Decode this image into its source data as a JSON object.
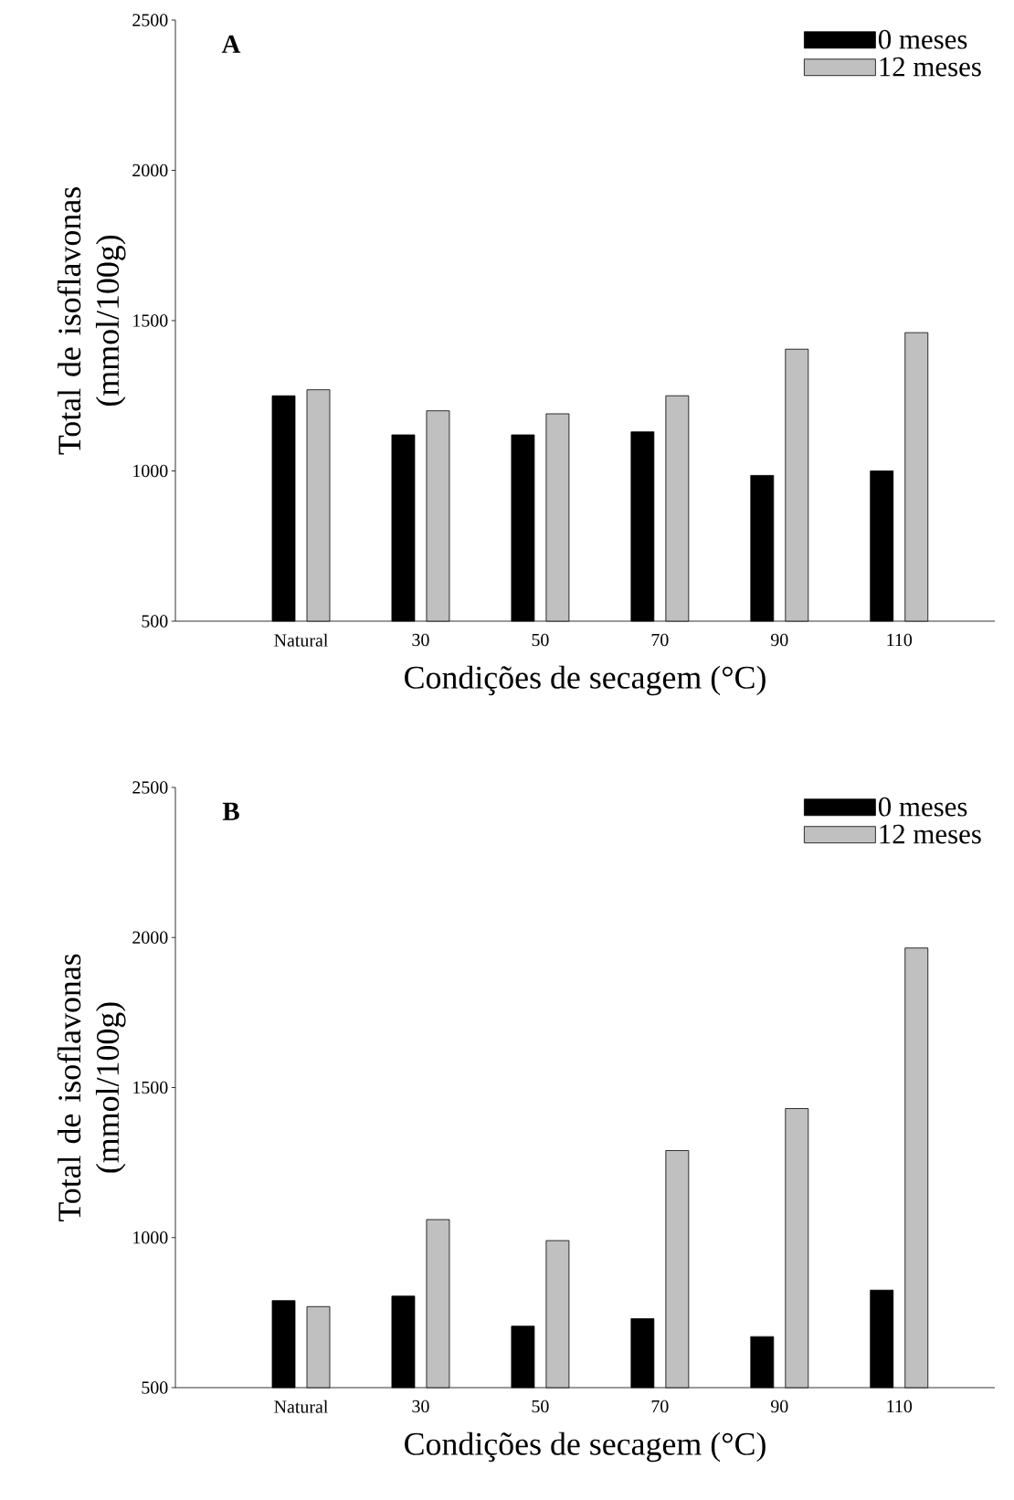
{
  "chart_data": [
    {
      "type": "bar",
      "annotations": [
        "A"
      ],
      "xlabel": "Condições de secagem (°C)",
      "ylabel": "Total de isoflavonas (mmol/100g)",
      "categories": [
        "Natural",
        "30",
        "50",
        "70",
        "90",
        "110"
      ],
      "series": [
        {
          "name": "0 meses",
          "color": "#000000",
          "values": [
            1250,
            1120,
            1120,
            1130,
            985,
            1000
          ]
        },
        {
          "name": "12 meses",
          "color": "#c0c0c0",
          "values": [
            1270,
            1200,
            1190,
            1250,
            1405,
            1460
          ]
        }
      ],
      "ylim": [
        500,
        2500
      ],
      "yticks": [
        500,
        1000,
        1500,
        2000,
        2500
      ],
      "legend": "top right"
    },
    {
      "type": "bar",
      "annotations": [
        "B"
      ],
      "xlabel": "Condições de secagem (°C)",
      "ylabel": "Total de isoflavonas (mmol/100g)",
      "categories": [
        "Natural",
        "30",
        "50",
        "70",
        "90",
        "110"
      ],
      "series": [
        {
          "name": "0 meses",
          "color": "#000000",
          "values": [
            790,
            805,
            705,
            730,
            670,
            825
          ]
        },
        {
          "name": "12 meses",
          "color": "#c0c0c0",
          "values": [
            770,
            1060,
            990,
            1290,
            1430,
            1965
          ]
        }
      ],
      "ylim": [
        500,
        2500
      ],
      "yticks": [
        500,
        1000,
        1500,
        2000,
        2500
      ],
      "legend": "top right"
    }
  ]
}
